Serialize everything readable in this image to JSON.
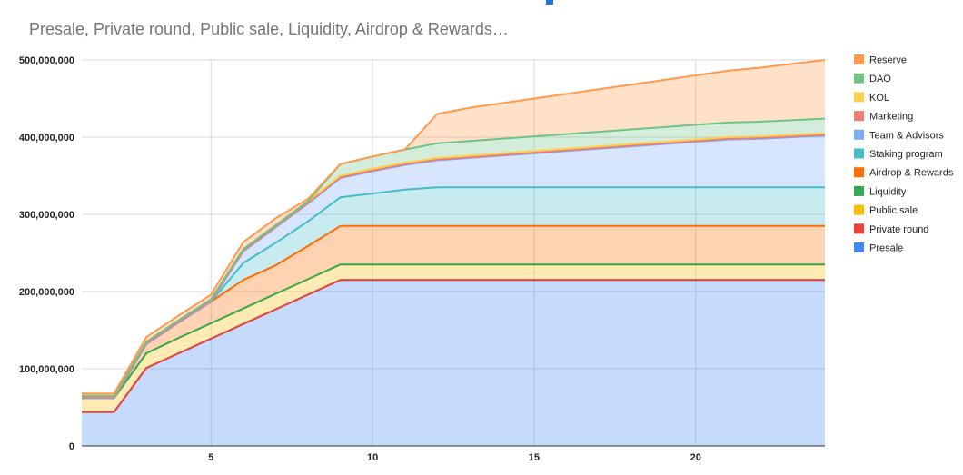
{
  "chart_data": {
    "type": "area",
    "stacked": true,
    "title": "Presale, Private round, Public sale, Liquidity, Airdrop & Rewards…",
    "xlabel": "",
    "ylabel": "",
    "xlim": [
      1,
      24
    ],
    "ylim": [
      0,
      500000000
    ],
    "x": [
      1,
      2,
      3,
      4,
      5,
      6,
      7,
      8,
      9,
      10,
      11,
      12,
      13,
      14,
      15,
      16,
      17,
      18,
      19,
      20,
      21,
      22,
      23,
      24
    ],
    "x_ticks": [
      5,
      10,
      15,
      20
    ],
    "x_tick_labels": [
      "5",
      "10",
      "15",
      "20"
    ],
    "y_ticks": [
      0,
      100000000,
      200000000,
      300000000,
      400000000,
      500000000
    ],
    "y_tick_labels": [
      "0",
      "100,000,000",
      "200,000,000",
      "300,000,000",
      "400,000,000",
      "500,000,000"
    ],
    "grid": true,
    "legend_position": "right",
    "series": [
      {
        "name": "Presale",
        "color": "#4285f4",
        "values": [
          44000000,
          44000000,
          101000000,
          120000000,
          139000000,
          158000000,
          177000000,
          196000000,
          215000000,
          215000000,
          215000000,
          215000000,
          215000000,
          215000000,
          215000000,
          215000000,
          215000000,
          215000000,
          215000000,
          215000000,
          215000000,
          215000000,
          215000000,
          215000000
        ]
      },
      {
        "name": "Private round",
        "color": "#ea4335",
        "values": [
          0,
          0,
          0,
          0,
          0,
          0,
          0,
          0,
          0,
          0,
          0,
          0,
          0,
          0,
          0,
          0,
          0,
          0,
          0,
          0,
          0,
          0,
          0,
          0
        ]
      },
      {
        "name": "Public sale",
        "color": "#fbbc04",
        "values": [
          18000000,
          18000000,
          19000000,
          20000000,
          20000000,
          20000000,
          20000000,
          20000000,
          20000000,
          20000000,
          20000000,
          20000000,
          20000000,
          20000000,
          20000000,
          20000000,
          20000000,
          20000000,
          20000000,
          20000000,
          20000000,
          20000000,
          20000000,
          20000000
        ]
      },
      {
        "name": "Liquidity",
        "color": "#34a853",
        "values": [
          0,
          0,
          0,
          0,
          0,
          0,
          0,
          0,
          0,
          0,
          0,
          0,
          0,
          0,
          0,
          0,
          0,
          0,
          0,
          0,
          0,
          0,
          0,
          0
        ]
      },
      {
        "name": "Airdrop & Rewards",
        "color": "#ff6d01",
        "values": [
          0,
          0,
          12000000,
          20000000,
          28000000,
          37000000,
          37000000,
          43000000,
          50000000,
          50000000,
          50000000,
          50000000,
          50000000,
          50000000,
          50000000,
          50000000,
          50000000,
          50000000,
          50000000,
          50000000,
          50000000,
          50000000,
          50000000,
          50000000
        ]
      },
      {
        "name": "Staking program",
        "color": "#46bdc6",
        "values": [
          0,
          0,
          0,
          0,
          0,
          22000000,
          29000000,
          32000000,
          37000000,
          42000000,
          47000000,
          50000000,
          50000000,
          50000000,
          50000000,
          50000000,
          50000000,
          50000000,
          50000000,
          50000000,
          50000000,
          50000000,
          50000000,
          50000000
        ]
      },
      {
        "name": "Team & Advisors",
        "color": "#7baaf7",
        "values": [
          0,
          0,
          0,
          0,
          0,
          15000000,
          20000000,
          23000000,
          25000000,
          29000000,
          32000000,
          35000000,
          38000000,
          41000000,
          44000000,
          47000000,
          50000000,
          53000000,
          56000000,
          59000000,
          62000000,
          63000000,
          65000000,
          67000000
        ]
      },
      {
        "name": "Marketing",
        "color": "#f07b72",
        "values": [
          1000000,
          1000000,
          1000000,
          1000000,
          1000000,
          1000000,
          1000000,
          1000000,
          1000000,
          1000000,
          1000000,
          1000000,
          1000000,
          1000000,
          1000000,
          1000000,
          1000000,
          1000000,
          1000000,
          1000000,
          1000000,
          1000000,
          1000000,
          1000000
        ]
      },
      {
        "name": "KOL",
        "color": "#fcd04f",
        "values": [
          2000000,
          2000000,
          2000000,
          2000000,
          2000000,
          2000000,
          2000000,
          2000000,
          2000000,
          2000000,
          2000000,
          2000000,
          2000000,
          2000000,
          2000000,
          2000000,
          2000000,
          2000000,
          2000000,
          2000000,
          2000000,
          2000000,
          2000000,
          2000000
        ]
      },
      {
        "name": "DAO",
        "color": "#71c287",
        "values": [
          0,
          0,
          0,
          0,
          0,
          0,
          0,
          0,
          15000000,
          16000000,
          17000000,
          19000000,
          19000000,
          19000000,
          19000000,
          19000000,
          19000000,
          19000000,
          19000000,
          19000000,
          19000000,
          19000000,
          19000000,
          19000000
        ]
      },
      {
        "name": "Reserve",
        "color": "#ff994d",
        "values": [
          3000000,
          3000000,
          6000000,
          6000000,
          6000000,
          9000000,
          9000000,
          3000000,
          0,
          0,
          0,
          38000000,
          43000000,
          46000000,
          49000000,
          52000000,
          55000000,
          58000000,
          61000000,
          64000000,
          67000000,
          70000000,
          73000000,
          76000000
        ]
      }
    ]
  }
}
